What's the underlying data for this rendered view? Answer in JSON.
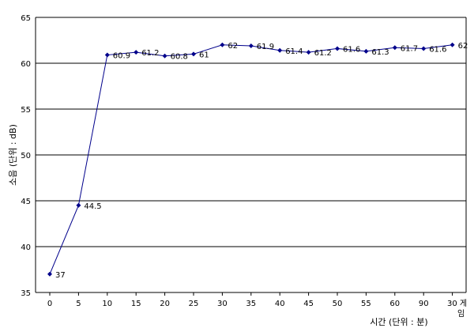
{
  "chart_data": {
    "type": "line",
    "title": "",
    "xlabel": "시간 (단위 : 분)",
    "ylabel": "소음 (단위 : dB)",
    "ylim": [
      35,
      65
    ],
    "yticks": [
      35,
      40,
      45,
      50,
      55,
      60,
      65
    ],
    "grid": "horizontal",
    "legend": "none",
    "categories": [
      "0",
      "5",
      "10",
      "15",
      "20",
      "25",
      "30",
      "35",
      "40",
      "45",
      "50",
      "55",
      "60",
      "90",
      "30 게임"
    ],
    "series": [
      {
        "values": [
          37,
          44.5,
          60.9,
          61.2,
          60.8,
          61,
          62,
          61.9,
          61.4,
          61.2,
          61.6,
          61.3,
          61.7,
          61.6,
          62
        ],
        "labels": [
          "37",
          "44.5",
          "60.9",
          "61.2",
          "60.8",
          "61",
          "62",
          "61.9",
          "61.4",
          "61.2",
          "61.6",
          "61.3",
          "61.7",
          "61.6",
          "62"
        ],
        "color": "#00008B"
      }
    ]
  }
}
